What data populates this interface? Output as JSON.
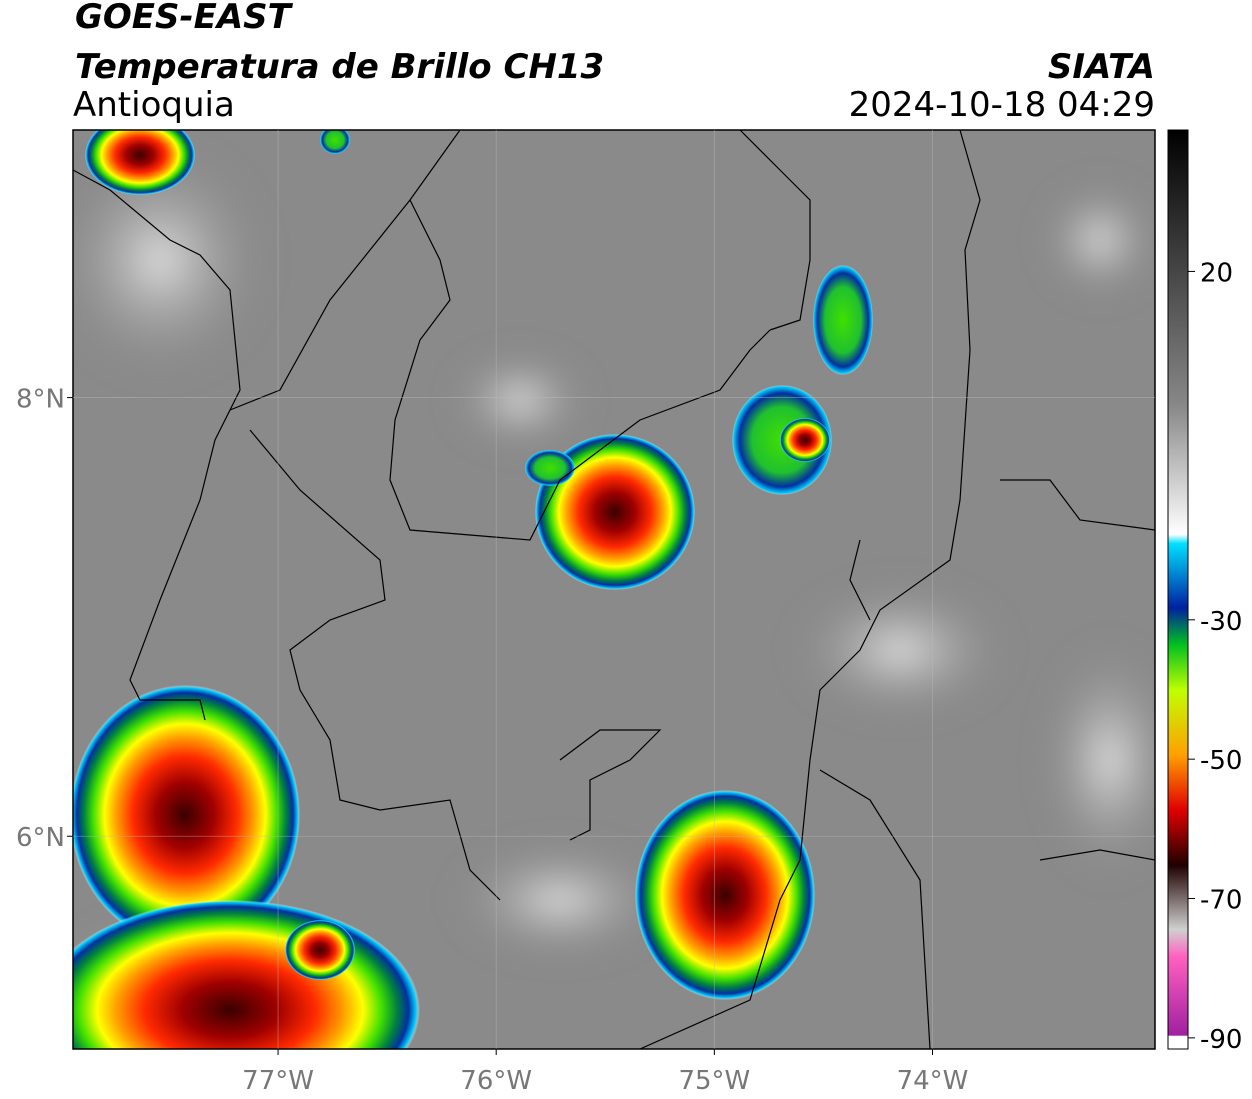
{
  "header": {
    "title": "GOES-EAST",
    "subtitle": "Temperatura de Brillo CH13",
    "region": "Antioquia",
    "source": "SIATA",
    "timestamp": "2024-10-18 04:29"
  },
  "map": {
    "lonlim": [
      -77.94,
      -72.98
    ],
    "latlim": [
      5.03,
      9.22
    ],
    "xticks": [
      {
        "value": -77,
        "label": "77°W"
      },
      {
        "value": -76,
        "label": "76°W"
      },
      {
        "value": -75,
        "label": "75°W"
      },
      {
        "value": -74,
        "label": "74°W"
      }
    ],
    "yticks": [
      {
        "value": 8,
        "label": "8°N"
      },
      {
        "value": 6,
        "label": "6°N"
      }
    ],
    "grid": true
  },
  "colorbar": {
    "lim": [
      -91.6,
      40.3
    ],
    "ticks": [
      20,
      -30,
      -50,
      -70,
      -90
    ]
  }
}
